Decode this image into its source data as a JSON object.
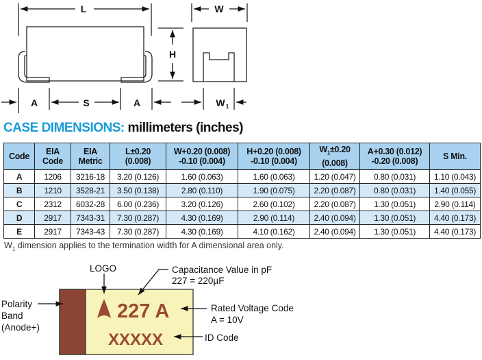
{
  "dimension_drawing": {
    "labels": {
      "L": "L",
      "W": "W",
      "H": "H",
      "A_left": "A",
      "S": "S",
      "A_right": "A",
      "W1": "W",
      "W1_sub": "1"
    }
  },
  "title": {
    "highlight": "CASE DIMENSIONS:",
    "rest": " millimeters (inches)"
  },
  "table": {
    "headers": [
      [
        "Code"
      ],
      [
        "EIA",
        "Code"
      ],
      [
        "EIA",
        "Metric"
      ],
      [
        "L±0.20",
        "(0.008)"
      ],
      [
        "W+0.20 (0.008)",
        "-0.10 (0.004)"
      ],
      [
        "H+0.20 (0.008)",
        "-0.10 (0.004)"
      ],
      [
        "W",
        "1",
        "±0.20",
        "(0.008)"
      ],
      [
        "A+0.30 (0.012)",
        "-0.20 (0.008)"
      ],
      [
        "S Min."
      ]
    ],
    "rows": [
      [
        "A",
        "1206",
        "3216-18",
        "3.20 (0.126)",
        "1.60 (0.063)",
        "1.60 (0.063)",
        "1.20 (0.047)",
        "0.80 (0.031)",
        "1.10 (0.043)"
      ],
      [
        "B",
        "1210",
        "3528-21",
        "3.50 (0.138)",
        "2.80 (0.110)",
        "1.90 (0.075)",
        "2.20 (0.087)",
        "0.80 (0.031)",
        "1.40 (0.055)"
      ],
      [
        "C",
        "2312",
        "6032-28",
        "6.00 (0.236)",
        "3.20 (0.126)",
        "2.60 (0.102)",
        "2.20 (0.087)",
        "1.30 (0.051)",
        "2.90 (0.114)"
      ],
      [
        "D",
        "2917",
        "7343-31",
        "7.30 (0.287)",
        "4.30 (0.169)",
        "2.90 (0.114)",
        "2.40 (0.094)",
        "1.30 (0.051)",
        "4.40 (0.173)"
      ],
      [
        "E",
        "2917",
        "7343-43",
        "7.30 (0.287)",
        "4.30 (0.169)",
        "4.10 (0.162)",
        "2.40 (0.094)",
        "1.30 (0.051)",
        "4.40 (0.173)"
      ]
    ]
  },
  "note": {
    "w": "W",
    "sub": "1",
    "text": " dimension applies to the termination width for A dimensional area only."
  },
  "marking": {
    "logo_label": "LOGO",
    "cap_label_1": "Capacitance Value in pF",
    "cap_label_2": "227 = 220µF",
    "polarity_1": "Polarity",
    "polarity_2": "Band",
    "polarity_3": "(Anode+)",
    "voltage_label_1": "Rated Voltage Code",
    "voltage_label_2": "A = 10V",
    "id_label": "ID Code",
    "value_text": "227 A",
    "id_text": "XXXXX",
    "colors": {
      "band": "#8b4532",
      "body": "#f8f3b8",
      "ink": "#9a4a33"
    }
  },
  "colors": {
    "title_blue": "#1a9bd7",
    "header_bg": "#a8d2ef",
    "alt_row_bg": "#d4e8f7"
  }
}
